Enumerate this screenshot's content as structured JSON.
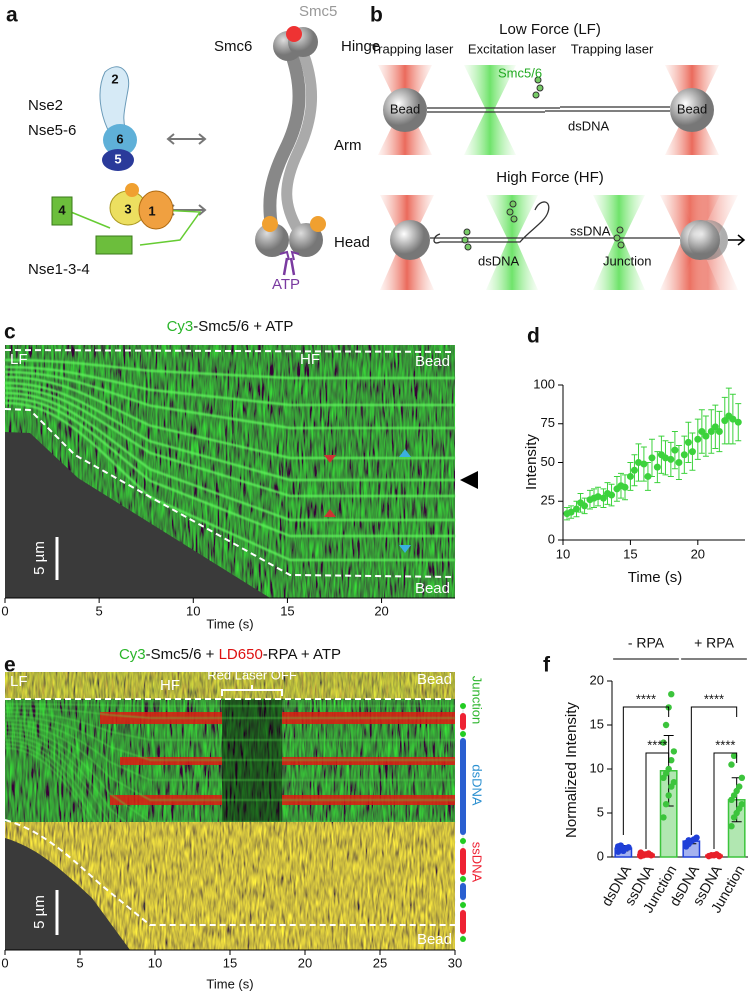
{
  "panel_labels": [
    "a",
    "b",
    "c",
    "d",
    "e",
    "f"
  ],
  "schematic_a": {
    "smc5": "Smc5",
    "smc6": "Smc6",
    "hinge": "Hinge",
    "arm": "Arm",
    "head": "Head",
    "atp": "ATP",
    "nse2": "Nse2",
    "nse56": "Nse5-6",
    "nse134": "Nse1-3-4",
    "subunits": [
      "2",
      "6",
      "5",
      "4",
      "3",
      "1"
    ]
  },
  "schematic_b": {
    "low_force": "Low Force (LF)",
    "trapping_laser": "Trapping laser",
    "excitation_laser": "Excitation laser",
    "smc56": "Smc5/6",
    "bead": "Bead",
    "dsdna": "dsDNA",
    "high_force": "High Force (HF)",
    "ssdna": "ssDNA",
    "junction": "Junction"
  },
  "chart_data": [
    {
      "type": "kymograph",
      "title_parts": [
        "Cy3",
        "-Smc5/6 + ATP"
      ],
      "lf": "LF",
      "hf": "HF",
      "bead": "Bead",
      "scale_bar": "5 µm",
      "xlabel": "Time (s)",
      "xlim": [
        0,
        23.9
      ],
      "xticks": [
        0,
        5,
        10,
        15,
        20
      ]
    },
    {
      "type": "scatter",
      "xlabel": "Time (s)",
      "ylabel": "Intensity",
      "color": "#3cd23c",
      "x": [
        10.3,
        10.6,
        11.0,
        11.3,
        11.6,
        12.0,
        12.3,
        12.6,
        13.0,
        13.3,
        13.6,
        14.0,
        14.3,
        14.6,
        15.0,
        15.3,
        15.6,
        16.0,
        16.3,
        16.6,
        17.0,
        17.3,
        17.6,
        18.0,
        18.3,
        18.6,
        19.0,
        19.3,
        19.6,
        20.0,
        20.3,
        20.6,
        21.0,
        21.3,
        21.6,
        22.0,
        22.3,
        22.6,
        23.0
      ],
      "values": [
        17,
        18,
        20,
        24,
        22,
        26,
        27,
        28,
        27,
        30,
        29,
        33,
        35,
        34,
        41,
        45,
        50,
        49,
        41,
        53,
        47,
        55,
        53,
        52,
        58,
        50,
        55,
        63,
        57,
        65,
        70,
        67,
        70,
        73,
        70,
        77,
        80,
        78,
        76
      ],
      "errors": [
        4,
        4,
        5,
        6,
        5,
        6,
        6,
        6,
        6,
        7,
        7,
        8,
        8,
        8,
        9,
        10,
        12,
        11,
        9,
        12,
        10,
        12,
        11,
        11,
        12,
        11,
        12,
        13,
        12,
        13,
        14,
        13,
        14,
        14,
        13,
        15,
        18,
        16,
        12
      ],
      "xlim": [
        10,
        23.5
      ],
      "ylim": [
        0,
        100
      ],
      "xticks": [
        10,
        15,
        20
      ],
      "yticks": [
        0,
        25,
        50,
        75,
        100
      ]
    },
    {
      "type": "kymograph",
      "title_parts": [
        "Cy3",
        "-Smc5/6 + ",
        "LD650",
        "-RPA + ATP"
      ],
      "lf": "LF",
      "hf": "HF",
      "bead": "Bead",
      "laser_off": "Red Laser OFF",
      "scale_bar": "5 µm",
      "xlabel": "Time (s)",
      "xlim": [
        0,
        30
      ],
      "xticks": [
        0,
        5,
        10,
        15,
        20,
        25,
        30
      ],
      "track_labels": [
        "Junction",
        "dsDNA",
        "ssDNA"
      ]
    },
    {
      "type": "bar",
      "ylabel": "Normalized Intensity",
      "groups": [
        "- RPA",
        "+ RPA"
      ],
      "categories": [
        "dsDNA",
        "ssDNA",
        "Junction",
        "dsDNA",
        "ssDNA",
        "Junction"
      ],
      "values": [
        1.0,
        0.3,
        9.8,
        1.8,
        0.2,
        6.5
      ],
      "errors": [
        0.3,
        0.2,
        4.0,
        0.3,
        0.1,
        2.5
      ],
      "points": [
        [
          0.6,
          0.8,
          0.9,
          1.0,
          1.1,
          1.2,
          1.3,
          0.7,
          1.0
        ],
        [
          0.1,
          0.2,
          0.3,
          0.4,
          0.2,
          0.5,
          0.3
        ],
        [
          4.5,
          6,
          7,
          8,
          8.5,
          9,
          9.5,
          10,
          11,
          12,
          13,
          15,
          17,
          18.5
        ],
        [
          1.2,
          1.5,
          1.8,
          2.0,
          2.2,
          1.6,
          1.9
        ],
        [
          0.1,
          0.2,
          0.2,
          0.3,
          0.1
        ],
        [
          3.5,
          4.5,
          5,
          5.5,
          6,
          6.5,
          7,
          7.5,
          8,
          9,
          10.5,
          11.5
        ]
      ],
      "colors": [
        "#1f3fd8",
        "#e8202a",
        "#3cc43c",
        "#1f3fd8",
        "#e8202a",
        "#3cc43c"
      ],
      "significance_labels": [
        "****",
        "****",
        "****",
        "****"
      ],
      "ylim": [
        0,
        20
      ],
      "yticks": [
        0,
        5,
        10,
        15,
        20
      ]
    }
  ]
}
